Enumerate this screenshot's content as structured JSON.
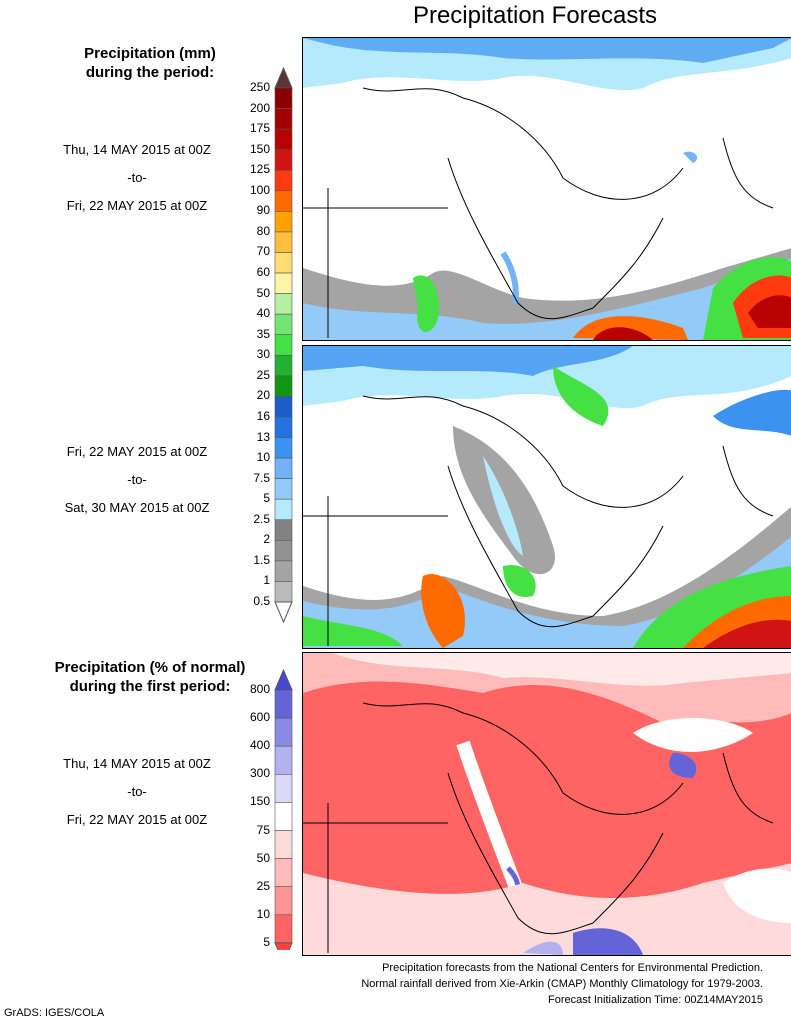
{
  "title": "Precipitation Forecasts",
  "precip_legend": {
    "heading_line1": "Precipitation (mm)",
    "heading_line2": "during the period:"
  },
  "period1": {
    "start": "Thu, 14 MAY 2015 at 00Z",
    "to": "-to-",
    "end": "Fri, 22 MAY 2015 at 00Z"
  },
  "period2": {
    "start": "Fri, 22 MAY 2015 at 00Z",
    "to": "-to-",
    "end": "Sat, 30 MAY 2015 at 00Z"
  },
  "pct_legend": {
    "heading_line1": "Precipitation (% of normal)",
    "heading_line2": "during the first period:"
  },
  "period3": {
    "start": "Thu, 14 MAY 2015 at 00Z",
    "to": "-to-",
    "end": "Fri, 22 MAY 2015 at 00Z"
  },
  "chart_data": [
    {
      "type": "heatmap",
      "title": "Precipitation (mm) Thu 14 MAY 2015 00Z - Fri 22 MAY 2015 00Z",
      "colorbar_levels": [
        "250",
        "200",
        "175",
        "150",
        "125",
        "100",
        "90",
        "80",
        "70",
        "60",
        "50",
        "40",
        "35",
        "30",
        "25",
        "20",
        "16",
        "13",
        "10",
        "7.5",
        "5",
        "2.5",
        "2",
        "1.5",
        "1",
        "0.5"
      ],
      "colorbar_colors": [
        "#8b0000",
        "#a30000",
        "#b80202",
        "#d01414",
        "#ff3a10",
        "#ff6a00",
        "#ffa200",
        "#ffbe40",
        "#ffdd72",
        "#fff4a6",
        "#b4f0a4",
        "#74e474",
        "#44e044",
        "#24b034",
        "#129612",
        "#1c5ec8",
        "#2272e2",
        "#3c92f0",
        "#72b2f6",
        "#94caf8",
        "#b4eafc",
        "#828282",
        "#929292",
        "#a4a4a4",
        "#bababa"
      ],
      "over_color": "#5c3434",
      "under_color": "#ffffff"
    },
    {
      "type": "heatmap",
      "title": "Precipitation (mm) Fri 22 MAY 2015 00Z - Sat 30 MAY 2015 00Z"
    },
    {
      "type": "heatmap",
      "title": "Precipitation (% of normal) Thu 14 MAY 2015 00Z - Fri 22 MAY 2015 00Z",
      "colorbar_levels": [
        "800",
        "600",
        "400",
        "300",
        "150",
        "75",
        "50",
        "25",
        "10",
        "5"
      ],
      "colorbar_colors": [
        "#6464d8",
        "#8a8ae2",
        "#b2b2ee",
        "#dadaf8",
        "#ffffff",
        "#ffdada",
        "#ffbaba",
        "#ff9494",
        "#ff6464"
      ],
      "over_color": "#4848d0",
      "under_color": "#ff4444"
    }
  ],
  "footer": {
    "line1": "Precipitation forecasts from the National Centers for Environmental Prediction.",
    "line2": "Normal rainfall derived from Xie-Arkin (CMAP) Monthly Climatology for 1979-2003.",
    "line3": "Forecast Initialization Time: 00Z14MAY2015"
  },
  "credit": "GrADS: IGES/COLA"
}
